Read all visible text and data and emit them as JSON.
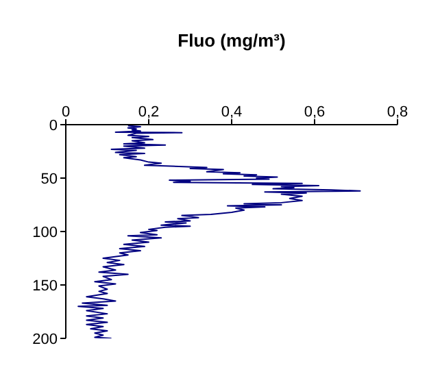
{
  "chart_data": {
    "type": "line",
    "title": "Fluo (mg/m³)",
    "xlim": [
      0,
      0.8
    ],
    "xticks": [
      0,
      {
        "value": 0.2,
        "label": "0,2"
      },
      {
        "value": 0.4,
        "label": "0,4"
      },
      {
        "value": 0.6,
        "label": "0,6"
      },
      {
        "value": 0.8,
        "label": "0,8"
      }
    ],
    "ylim": [
      200,
      0
    ],
    "yticks": [
      0,
      50,
      100,
      150,
      200
    ],
    "grid": false,
    "legend": false,
    "marker": "none",
    "line_style": "solid",
    "series": [
      {
        "color": "#000080",
        "x": [
          0.15,
          0.18,
          0.15,
          0.17,
          0.16,
          0.18,
          0.12,
          0.28,
          0.17,
          0.15,
          0.2,
          0.16,
          0.21,
          0.16,
          0.19,
          0.14,
          0.24,
          0.14,
          0.19,
          0.11,
          0.17,
          0.12,
          0.19,
          0.13,
          0.17,
          0.14,
          0.18,
          0.2,
          0.23,
          0.19,
          0.34,
          0.3,
          0.38,
          0.34,
          0.42,
          0.38,
          0.46,
          0.43,
          0.51,
          0.46,
          0.49,
          0.25,
          0.3,
          0.26,
          0.57,
          0.45,
          0.61,
          0.52,
          0.55,
          0.5,
          0.64,
          0.71,
          0.48,
          0.58,
          0.52,
          0.57,
          0.54,
          0.57,
          0.52,
          0.43,
          0.52,
          0.39,
          0.48,
          0.41,
          0.43,
          0.4,
          0.35,
          0.28,
          0.32,
          0.27,
          0.3,
          0.24,
          0.29,
          0.23,
          0.3,
          0.24,
          0.2,
          0.22,
          0.18,
          0.22,
          0.15,
          0.23,
          0.16,
          0.2,
          0.14,
          0.19,
          0.13,
          0.18,
          0.13,
          0.15,
          0.09,
          0.13,
          0.1,
          0.14,
          0.09,
          0.12,
          0.08,
          0.15,
          0.09,
          0.11,
          0.07,
          0.12,
          0.08,
          0.1,
          0.08,
          0.1,
          0.05,
          0.09,
          0.12,
          0.04,
          0.1,
          0.03,
          0.09,
          0.05,
          0.1,
          0.05,
          0.09,
          0.05,
          0.1,
          0.05,
          0.09,
          0.06,
          0.1,
          0.07,
          0.09,
          0.07,
          0.11
        ],
        "values": [
          1,
          2,
          3,
          4,
          5,
          6,
          7,
          7.5,
          8,
          10,
          11,
          12,
          14,
          15,
          17,
          18,
          19,
          20,
          22,
          23,
          24,
          26,
          27,
          28,
          30,
          31,
          33,
          35,
          36,
          38,
          40,
          41,
          42,
          44,
          45,
          46,
          47,
          48,
          49,
          50,
          51,
          52,
          53,
          54,
          55,
          56,
          57,
          58,
          59,
          60,
          61,
          62,
          63,
          64,
          65,
          67,
          69,
          71,
          73,
          74,
          75,
          76,
          77,
          78,
          80,
          82,
          84,
          85,
          87,
          88,
          90,
          91,
          92,
          94,
          95,
          96,
          98,
          99,
          101,
          103,
          104,
          106,
          108,
          110,
          112,
          114,
          116,
          118,
          120,
          122,
          125,
          127,
          129,
          131,
          133,
          136,
          138,
          140,
          142,
          145,
          147,
          149,
          151,
          154,
          156,
          158,
          161,
          163,
          165,
          167,
          169,
          170,
          172,
          174,
          177,
          179,
          181,
          183,
          185,
          187,
          189,
          191,
          193,
          195,
          197,
          199,
          200
        ]
      }
    ]
  }
}
